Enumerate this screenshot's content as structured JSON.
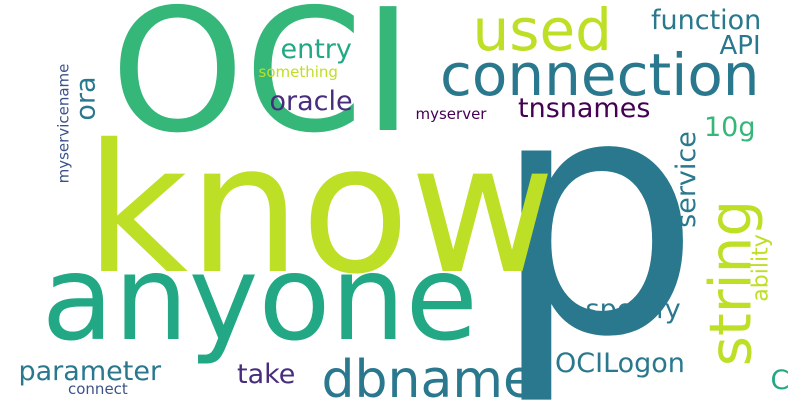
{
  "words": [
    {
      "id": "p",
      "text": "p",
      "color": "#2a788e"
    },
    {
      "id": "oci",
      "text": "OCI",
      "color": "#35b779"
    },
    {
      "id": "know",
      "text": "know",
      "color": "#bddf26"
    },
    {
      "id": "anyone",
      "text": "anyone",
      "color": "#22a884"
    },
    {
      "id": "connection",
      "text": "connection",
      "color": "#2a788e"
    },
    {
      "id": "used",
      "text": "used",
      "color": "#bddf26"
    },
    {
      "id": "string",
      "text": "string",
      "color": "#bddf26"
    },
    {
      "id": "dbname",
      "text": "dbname",
      "color": "#2a788e"
    },
    {
      "id": "function",
      "text": "function",
      "color": "#2a788e"
    },
    {
      "id": "entry",
      "text": "entry",
      "color": "#22a884"
    },
    {
      "id": "api",
      "text": "API",
      "color": "#2a788e"
    },
    {
      "id": "oracle",
      "text": "oracle",
      "color": "#472d7b"
    },
    {
      "id": "tnsnames",
      "text": "tnsnames",
      "color": "#440154"
    },
    {
      "id": "ora",
      "text": "ora",
      "color": "#2a788e"
    },
    {
      "id": "something",
      "text": "something",
      "color": "#bddf26"
    },
    {
      "id": "myservicename",
      "text": "myservicename",
      "color": "#3b528b"
    },
    {
      "id": "myserver",
      "text": "myserver",
      "color": "#440154"
    },
    {
      "id": "service",
      "text": "service",
      "color": "#2a788e"
    },
    {
      "id": "10g",
      "text": "10g",
      "color": "#35b779"
    },
    {
      "id": "ability",
      "text": "ability",
      "color": "#bddf26"
    },
    {
      "id": "specify",
      "text": "specify",
      "color": "#2a788e"
    },
    {
      "id": "ocilogon",
      "text": "OCILogon",
      "color": "#2a788e"
    },
    {
      "id": "parameter",
      "text": "parameter",
      "color": "#2a788e"
    },
    {
      "id": "take",
      "text": "take",
      "color": "#472d7b"
    },
    {
      "id": "connect",
      "text": "connect",
      "color": "#3b528b"
    },
    {
      "id": "c",
      "text": "C",
      "color": "#22a884"
    }
  ]
}
